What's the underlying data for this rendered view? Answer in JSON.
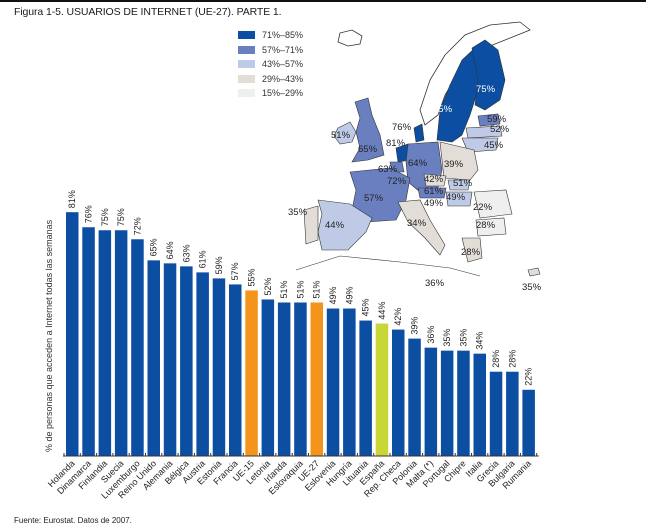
{
  "figure": {
    "title": "Figura 1-5. USUARIOS DE INTERNET (UE-27). PARTE 1.",
    "source": "Fuente: Eurostat. Datos de 2007."
  },
  "colors": {
    "country": "#0b4ea2",
    "aggregate": "#f5941d",
    "spain": "#c8d638",
    "axis": "#333333"
  },
  "legend": {
    "items": [
      {
        "label": "71%–85%",
        "color": "#0b4ea2"
      },
      {
        "label": "57%–71%",
        "color": "#6a7fbf"
      },
      {
        "label": "43%–57%",
        "color": "#bfcbe6"
      },
      {
        "label": "29%–43%",
        "color": "#e3ddd8"
      },
      {
        "label": "15%–29%",
        "color": "#efefef"
      }
    ]
  },
  "map": {
    "labels": [
      {
        "region": "Finlandia",
        "text": "75%"
      },
      {
        "region": "Suecia",
        "text": "75%"
      },
      {
        "region": "Estonia",
        "text": "59%"
      },
      {
        "region": "Letonia",
        "text": "52%"
      },
      {
        "region": "Lituania",
        "text": "45%"
      },
      {
        "region": "Dinamarca",
        "text": "76%"
      },
      {
        "region": "Holanda",
        "text": "81%"
      },
      {
        "region": "Irlanda",
        "text": "51%"
      },
      {
        "region": "Reino Unido",
        "text": "65%"
      },
      {
        "region": "Alemania",
        "text": "64%"
      },
      {
        "region": "Polonia",
        "text": "39%"
      },
      {
        "region": "Bélgica",
        "text": "63%"
      },
      {
        "region": "Luxemburgo",
        "text": "72%"
      },
      {
        "region": "Rep. Checa",
        "text": "42%"
      },
      {
        "region": "Eslovaquia",
        "text": "51%"
      },
      {
        "region": "Austria",
        "text": "61%"
      },
      {
        "region": "Hungría",
        "text": "49%"
      },
      {
        "region": "Eslovenia",
        "text": "49%"
      },
      {
        "region": "Francia",
        "text": "57%"
      },
      {
        "region": "Rumania",
        "text": "22%"
      },
      {
        "region": "Bulgaria",
        "text": "28%"
      },
      {
        "region": "Portugal",
        "text": "35%"
      },
      {
        "region": "España",
        "text": "44%"
      },
      {
        "region": "Italia",
        "text": "34%"
      },
      {
        "region": "Grecia",
        "text": "28%"
      },
      {
        "region": "Malta",
        "text": "36%"
      },
      {
        "region": "Chipre",
        "text": "35%"
      }
    ]
  },
  "chart_data": {
    "type": "bar",
    "title": "Figura 1-5. USUARIOS DE INTERNET (UE-27). PARTE 1.",
    "xlabel": "",
    "ylabel": "% de personas que acceden a Internet todas las semanas",
    "ylim": [
      0,
      85
    ],
    "grid": false,
    "legend_position": "top-center",
    "categories": [
      "Holanda",
      "Dinamarca",
      "Finlandia",
      "Suecia",
      "Luxemburgo",
      "Reino Unido",
      "Alemania",
      "Bélgica",
      "Austria",
      "Estonia",
      "Francia",
      "UE-15",
      "Letonia",
      "Irlanda",
      "Eslovaquia",
      "UE-27",
      "Eslovenia",
      "Hungría",
      "Lituania",
      "España",
      "Rep. Checa",
      "Polonia",
      "Malta (*)",
      "Portugal",
      "Chipre",
      "Italia",
      "Grecia",
      "Bulgaria",
      "Rumania"
    ],
    "values": [
      81,
      76,
      75,
      75,
      72,
      65,
      64,
      63,
      61,
      59,
      57,
      55,
      52,
      51,
      51,
      51,
      49,
      49,
      45,
      44,
      42,
      39,
      36,
      35,
      35,
      34,
      28,
      28,
      22
    ],
    "value_labels": [
      "81%",
      "76%",
      "75%",
      "75%",
      "72%",
      "65%",
      "64%",
      "63%",
      "61%",
      "59%",
      "57%",
      "55%",
      "52%",
      "51%",
      "51%",
      "51%",
      "49%",
      "49%",
      "45%",
      "44%",
      "42%",
      "39%",
      "36%",
      "35%",
      "35%",
      "34%",
      "28%",
      "28%",
      "22%"
    ],
    "bar_kind": [
      "country",
      "country",
      "country",
      "country",
      "country",
      "country",
      "country",
      "country",
      "country",
      "country",
      "country",
      "aggregate",
      "country",
      "country",
      "country",
      "aggregate",
      "country",
      "country",
      "country",
      "spain",
      "country",
      "country",
      "country",
      "country",
      "country",
      "country",
      "country",
      "country",
      "country"
    ]
  }
}
